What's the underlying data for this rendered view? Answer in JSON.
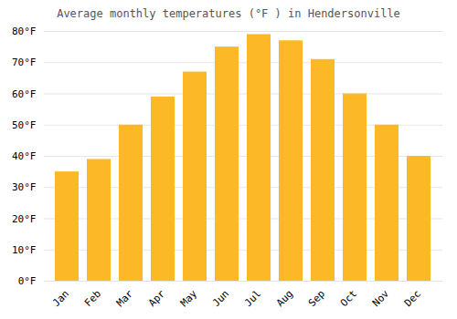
{
  "chart_data": {
    "type": "bar",
    "title": "Average monthly temperatures (°F ) in Hendersonville",
    "categories": [
      "Jan",
      "Feb",
      "Mar",
      "Apr",
      "May",
      "Jun",
      "Jul",
      "Aug",
      "Sep",
      "Oct",
      "Nov",
      "Dec"
    ],
    "values": [
      35,
      39,
      50,
      59,
      67,
      75,
      79,
      77,
      71,
      60,
      50,
      40
    ],
    "color": "#FDB827",
    "ylim": [
      0,
      80
    ],
    "yticks": [
      {
        "value": 0,
        "label": "0°F"
      },
      {
        "value": 10,
        "label": "10°F"
      },
      {
        "value": 20,
        "label": "20°F"
      },
      {
        "value": 30,
        "label": "30°F"
      },
      {
        "value": 40,
        "label": "40°F"
      },
      {
        "value": 50,
        "label": "50°F"
      },
      {
        "value": 60,
        "label": "60°F"
      },
      {
        "value": 70,
        "label": "70°F"
      },
      {
        "value": 80,
        "label": "80°F"
      }
    ],
    "grid": true
  }
}
